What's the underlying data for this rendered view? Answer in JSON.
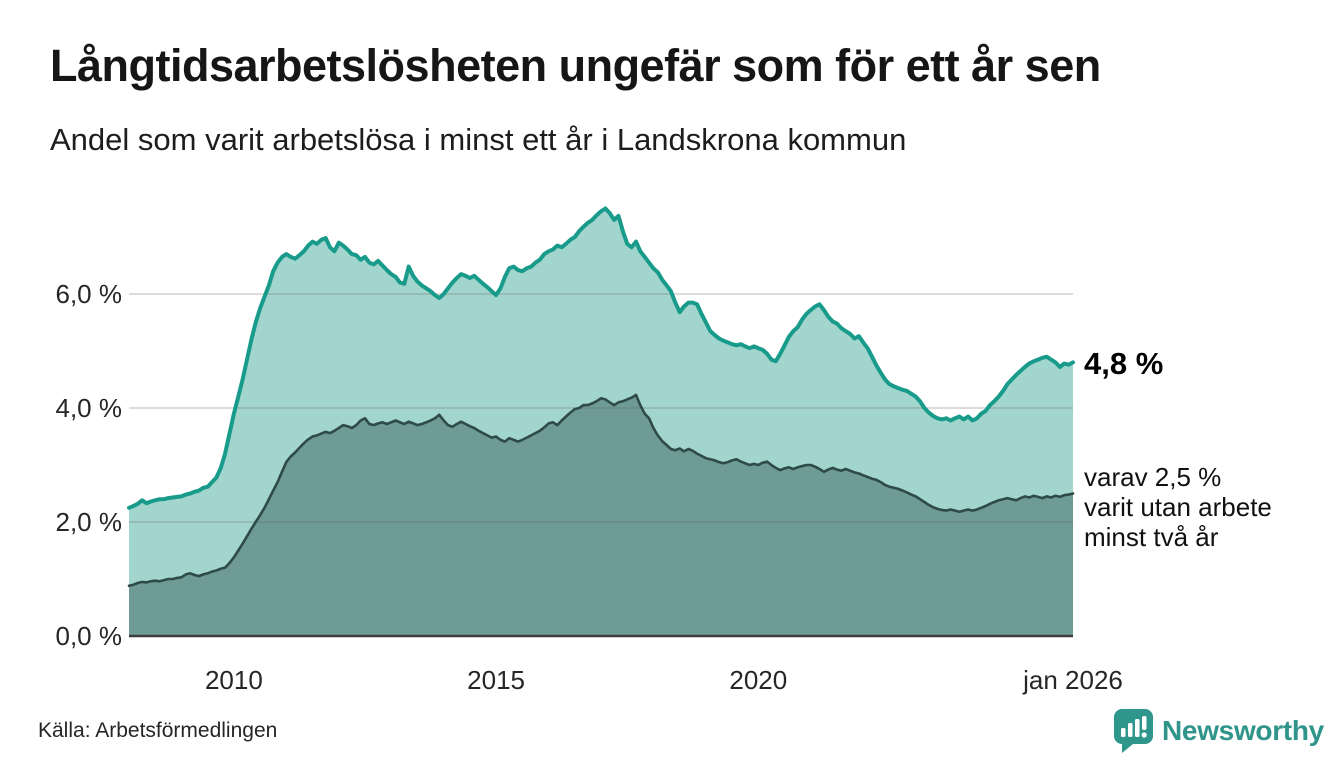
{
  "header": {
    "title": "Långtidsarbetslösheten ungefär som för ett år sen",
    "subtitle": "Andel som varit arbetslösa i minst ett år i Landskrona kommun"
  },
  "chart_data": {
    "type": "area",
    "title": "Långtidsarbetslösheten ungefär som för ett år sen",
    "subtitle": "Andel som varit arbetslösa i minst ett år i Landskrona kommun",
    "x_start_year": 2008,
    "x_step_months": 1,
    "x_end_label": "jan 2026",
    "ylim": [
      0,
      7.9
    ],
    "grid": "horizontal",
    "legend": "none",
    "y_ticks": [
      {
        "value": 0,
        "label": "0,0 %"
      },
      {
        "value": 2,
        "label": "2,0 %"
      },
      {
        "value": 4,
        "label": "4,0 %"
      },
      {
        "value": 6,
        "label": "6,0 %"
      }
    ],
    "x_ticks": [
      {
        "year": 2010,
        "label": "2010"
      },
      {
        "year": 2015,
        "label": "2015"
      },
      {
        "year": 2020,
        "label": "2020"
      },
      {
        "year": 2026,
        "label": "jan 2026"
      }
    ],
    "series": [
      {
        "name": "Arbetslösa minst ett år",
        "end_value_pct": 4.8,
        "color_fill": "#a2d5cd",
        "color_line": "#189b8b",
        "values": [
          2.25,
          2.28,
          2.32,
          2.38,
          2.33,
          2.36,
          2.38,
          2.4,
          2.4,
          2.42,
          2.43,
          2.44,
          2.45,
          2.48,
          2.5,
          2.53,
          2.55,
          2.6,
          2.62,
          2.7,
          2.78,
          2.95,
          3.2,
          3.55,
          3.9,
          4.2,
          4.5,
          4.85,
          5.2,
          5.5,
          5.75,
          5.95,
          6.15,
          6.4,
          6.55,
          6.65,
          6.7,
          6.65,
          6.62,
          6.68,
          6.75,
          6.85,
          6.92,
          6.88,
          6.95,
          6.98,
          6.82,
          6.75,
          6.9,
          6.85,
          6.78,
          6.7,
          6.68,
          6.6,
          6.65,
          6.55,
          6.52,
          6.58,
          6.5,
          6.42,
          6.35,
          6.3,
          6.2,
          6.18,
          6.48,
          6.32,
          6.22,
          6.15,
          6.1,
          6.05,
          5.98,
          5.93,
          6.0,
          6.1,
          6.2,
          6.28,
          6.35,
          6.32,
          6.28,
          6.32,
          6.25,
          6.18,
          6.12,
          6.05,
          5.98,
          6.1,
          6.3,
          6.45,
          6.48,
          6.42,
          6.4,
          6.45,
          6.48,
          6.55,
          6.6,
          6.7,
          6.75,
          6.78,
          6.85,
          6.82,
          6.88,
          6.95,
          7.0,
          7.1,
          7.18,
          7.25,
          7.3,
          7.38,
          7.45,
          7.5,
          7.42,
          7.3,
          7.37,
          7.1,
          6.88,
          6.82,
          6.92,
          6.75,
          6.65,
          6.55,
          6.45,
          6.38,
          6.25,
          6.15,
          6.05,
          5.85,
          5.68,
          5.78,
          5.85,
          5.85,
          5.82,
          5.65,
          5.5,
          5.35,
          5.28,
          5.22,
          5.18,
          5.15,
          5.12,
          5.1,
          5.12,
          5.08,
          5.05,
          5.08,
          5.05,
          5.02,
          4.95,
          4.85,
          4.82,
          4.95,
          5.1,
          5.25,
          5.35,
          5.42,
          5.55,
          5.65,
          5.72,
          5.78,
          5.82,
          5.72,
          5.6,
          5.52,
          5.48,
          5.4,
          5.35,
          5.3,
          5.22,
          5.26,
          5.15,
          5.05,
          4.9,
          4.75,
          4.62,
          4.5,
          4.42,
          4.38,
          4.35,
          4.32,
          4.3,
          4.25,
          4.2,
          4.12,
          4.0,
          3.92,
          3.86,
          3.82,
          3.8,
          3.82,
          3.78,
          3.82,
          3.85,
          3.8,
          3.85,
          3.78,
          3.82,
          3.9,
          3.95,
          4.05,
          4.12,
          4.2,
          4.3,
          4.42,
          4.5,
          4.58,
          4.65,
          4.72,
          4.78,
          4.82,
          4.85,
          4.88,
          4.9,
          4.85,
          4.8,
          4.72,
          4.78,
          4.76,
          4.8
        ]
      },
      {
        "name": "varav arbetslösa minst två år",
        "end_value_pct": 2.5,
        "color_fill": "#6f9b96",
        "color_line": "#2e4b47",
        "values": [
          0.88,
          0.9,
          0.93,
          0.95,
          0.94,
          0.96,
          0.97,
          0.96,
          0.98,
          1.0,
          1.0,
          1.02,
          1.03,
          1.08,
          1.1,
          1.07,
          1.05,
          1.08,
          1.1,
          1.13,
          1.15,
          1.18,
          1.2,
          1.28,
          1.38,
          1.5,
          1.62,
          1.75,
          1.88,
          2.0,
          2.12,
          2.25,
          2.4,
          2.55,
          2.7,
          2.88,
          3.05,
          3.15,
          3.22,
          3.3,
          3.38,
          3.45,
          3.5,
          3.52,
          3.55,
          3.58,
          3.56,
          3.6,
          3.65,
          3.7,
          3.68,
          3.65,
          3.7,
          3.78,
          3.82,
          3.72,
          3.7,
          3.73,
          3.75,
          3.72,
          3.75,
          3.78,
          3.75,
          3.72,
          3.76,
          3.73,
          3.7,
          3.72,
          3.75,
          3.78,
          3.82,
          3.88,
          3.78,
          3.7,
          3.67,
          3.72,
          3.76,
          3.72,
          3.68,
          3.65,
          3.6,
          3.56,
          3.52,
          3.48,
          3.5,
          3.44,
          3.41,
          3.47,
          3.44,
          3.41,
          3.44,
          3.48,
          3.52,
          3.56,
          3.6,
          3.66,
          3.73,
          3.75,
          3.7,
          3.78,
          3.85,
          3.92,
          3.98,
          4.0,
          4.05,
          4.05,
          4.08,
          4.12,
          4.17,
          4.15,
          4.1,
          4.05,
          4.1,
          4.12,
          4.15,
          4.18,
          4.23,
          4.05,
          3.9,
          3.82,
          3.65,
          3.52,
          3.42,
          3.35,
          3.28,
          3.26,
          3.29,
          3.24,
          3.28,
          3.25,
          3.2,
          3.16,
          3.12,
          3.1,
          3.08,
          3.05,
          3.03,
          3.05,
          3.08,
          3.1,
          3.06,
          3.03,
          3.0,
          3.02,
          3.0,
          3.04,
          3.06,
          3.0,
          2.95,
          2.91,
          2.94,
          2.96,
          2.93,
          2.96,
          2.98,
          3.0,
          3.0,
          2.97,
          2.93,
          2.88,
          2.92,
          2.95,
          2.92,
          2.9,
          2.93,
          2.9,
          2.87,
          2.85,
          2.82,
          2.79,
          2.76,
          2.74,
          2.7,
          2.65,
          2.62,
          2.6,
          2.58,
          2.55,
          2.52,
          2.48,
          2.45,
          2.4,
          2.35,
          2.3,
          2.26,
          2.23,
          2.21,
          2.2,
          2.22,
          2.2,
          2.18,
          2.2,
          2.22,
          2.2,
          2.22,
          2.25,
          2.28,
          2.32,
          2.35,
          2.38,
          2.4,
          2.42,
          2.4,
          2.38,
          2.42,
          2.45,
          2.43,
          2.46,
          2.44,
          2.42,
          2.45,
          2.43,
          2.46,
          2.44,
          2.47,
          2.48,
          2.5
        ]
      }
    ],
    "annotations": {
      "end_value_label": "4,8 %",
      "sub_label_line1": "varav 2,5 %",
      "sub_label_line2": "varit utan arbete",
      "sub_label_line3": "minst två år"
    }
  },
  "footer": {
    "source": "Källa: Arbetsförmedlingen",
    "logo_text": "Newsworthy"
  },
  "colors": {
    "series1_fill": "#a2d5cd",
    "series1_line": "#189b8b",
    "series2_fill": "#6f9b96",
    "series2_line": "#2e4b47",
    "gridline": "#dcdcdc",
    "axis": "#3c3c3c",
    "brand_teal": "#2f948a"
  }
}
